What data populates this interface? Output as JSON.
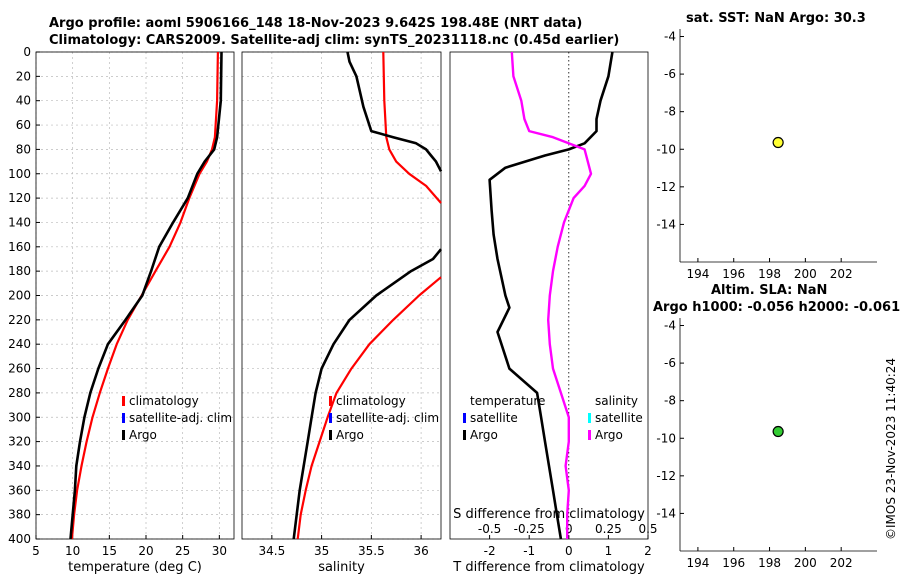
{
  "titles": {
    "line1": "Argo profile: aoml 5906166_148 18-Nov-2023 9.642S 198.48E (NRT data)",
    "line2": "Climatology: CARS2009. Satellite-adj clim: synTS_20231118.nc (0.45d earlier)",
    "sst": "sat. SST: NaN Argo: 30.3",
    "altim1": "Altim. SLA: NaN",
    "altim2": "Argo h1000: -0.056 h2000: -0.061"
  },
  "footer": {
    "timestamp": "©IMOS 23-Nov-2023 11:40:24"
  },
  "colors": {
    "climatology": "#ff0000",
    "satellite": "#0000ff",
    "satellite_s": "#00ffff",
    "argo": "#000000",
    "argo_s": "#ff00ff",
    "sst_dot": "#ffff33",
    "altim_dot": "#33cc33"
  },
  "chart_data": [
    {
      "id": "temperature",
      "type": "line",
      "xlabel": "temperature (deg C)",
      "xlim": [
        5,
        32
      ],
      "ylim": [
        0,
        400
      ],
      "xticks": [
        5,
        10,
        15,
        20,
        25,
        30
      ],
      "yticks": [
        0,
        20,
        40,
        60,
        80,
        100,
        120,
        140,
        160,
        180,
        200,
        220,
        240,
        260,
        280,
        300,
        320,
        340,
        360,
        380,
        400
      ],
      "legend": {
        "position": "lower-right",
        "entries": [
          "climatology",
          "satellite-adj. clim",
          "Argo"
        ]
      },
      "series": [
        {
          "name": "climatology",
          "depth": [
            0,
            40,
            70,
            80,
            90,
            100,
            120,
            140,
            160,
            180,
            200,
            220,
            240,
            260,
            280,
            300,
            320,
            340,
            360,
            380,
            400
          ],
          "value": [
            29.8,
            29.7,
            29.4,
            29.0,
            28.3,
            27.3,
            25.9,
            24.7,
            23.2,
            21.3,
            19.4,
            17.5,
            16.0,
            14.8,
            13.7,
            12.7,
            11.9,
            11.2,
            10.6,
            10.2,
            9.9
          ]
        },
        {
          "name": "Argo",
          "depth": [
            0,
            40,
            70,
            80,
            90,
            100,
            120,
            140,
            160,
            180,
            200,
            220,
            240,
            260,
            280,
            300,
            320,
            340,
            360,
            380,
            400
          ],
          "value": [
            30.3,
            30.2,
            29.7,
            29.3,
            28.0,
            27.0,
            25.7,
            23.7,
            21.8,
            20.7,
            19.5,
            17.2,
            14.8,
            13.5,
            12.4,
            11.6,
            11.0,
            10.5,
            10.3,
            10.0,
            9.7
          ]
        }
      ]
    },
    {
      "id": "salinity",
      "type": "line",
      "xlabel": "salinity",
      "xlim": [
        34.2,
        36.2
      ],
      "ylim": [
        0,
        400
      ],
      "xticks": [
        34.5,
        35,
        35.5,
        36
      ],
      "legend": {
        "position": "lower-right",
        "entries": [
          "climatology",
          "satellite-adj. clim",
          "Argo"
        ]
      },
      "series": [
        {
          "name": "climatology",
          "depth": [
            0,
            40,
            70,
            80,
            90,
            100,
            110,
            124,
            null,
            185,
            200,
            220,
            240,
            260,
            280,
            300,
            320,
            340,
            360,
            380,
            400
          ],
          "value": [
            35.62,
            35.63,
            35.65,
            35.68,
            35.75,
            35.88,
            36.05,
            36.2,
            null,
            36.2,
            35.98,
            35.72,
            35.48,
            35.3,
            35.15,
            35.06,
            34.98,
            34.9,
            34.84,
            34.79,
            34.76
          ]
        },
        {
          "name": "Argo",
          "depth": [
            0,
            8,
            20,
            45,
            65,
            70,
            75,
            80,
            85,
            90,
            98,
            null,
            162,
            170,
            180,
            200,
            220,
            240,
            260,
            280,
            300,
            320,
            340,
            360,
            380,
            400
          ],
          "value": [
            35.26,
            35.28,
            35.35,
            35.42,
            35.5,
            35.72,
            35.95,
            36.05,
            36.1,
            36.15,
            36.2,
            null,
            36.2,
            36.12,
            35.9,
            35.55,
            35.28,
            35.12,
            35.0,
            34.94,
            34.9,
            34.86,
            34.82,
            34.78,
            34.75,
            34.72
          ]
        }
      ]
    },
    {
      "id": "difference",
      "type": "line",
      "xlabel": "T difference from climatology",
      "x2label": "S difference from climatology",
      "xlim": [
        -3,
        2
      ],
      "x2lim": [
        -0.75,
        0.5
      ],
      "xticks": [
        -2,
        -1,
        0,
        1,
        2
      ],
      "x2ticks": [
        -0.5,
        -0.25,
        0,
        0.25,
        0.5
      ],
      "x2tick_labels": [
        "-0.5",
        "-0.25",
        "0",
        "0.25",
        "0.5"
      ],
      "legend": {
        "temperature": {
          "title": "temperature",
          "entries": [
            "satellite",
            "Argo"
          ]
        },
        "salinity": {
          "title": "salinity",
          "entries": [
            "satellite",
            "Argo"
          ]
        }
      },
      "series": [
        {
          "name": "T diff (Argo)",
          "axis": "T",
          "depth": [
            0,
            20,
            40,
            55,
            65,
            75,
            80,
            85,
            95,
            105,
            130,
            150,
            170,
            200,
            210,
            230,
            260,
            280,
            300,
            320,
            340,
            360,
            380,
            400
          ],
          "value": [
            1.1,
            1.0,
            0.8,
            0.7,
            0.7,
            0.4,
            0.0,
            -0.6,
            -1.6,
            -2.0,
            -1.95,
            -1.9,
            -1.8,
            -1.6,
            -1.5,
            -1.8,
            -1.5,
            -0.8,
            -0.7,
            -0.6,
            -0.5,
            -0.4,
            -0.3,
            -0.2
          ]
        },
        {
          "name": "S diff (Argo)",
          "axis": "S",
          "depth": [
            0,
            20,
            40,
            55,
            65,
            70,
            80,
            90,
            100,
            110,
            120,
            140,
            160,
            180,
            200,
            220,
            240,
            260,
            280,
            300,
            320,
            340,
            360,
            380,
            400
          ],
          "value": [
            -0.36,
            -0.35,
            -0.3,
            -0.28,
            -0.25,
            -0.1,
            0.1,
            0.12,
            0.14,
            0.1,
            0.03,
            -0.03,
            -0.07,
            -0.1,
            -0.12,
            -0.13,
            -0.12,
            -0.1,
            -0.05,
            0.0,
            0.0,
            -0.02,
            0.0,
            -0.01,
            -0.01
          ]
        }
      ]
    },
    {
      "id": "sst-map",
      "type": "scatter",
      "xlim": [
        193,
        204
      ],
      "ylim": [
        -16,
        -3.6
      ],
      "xticks": [
        194,
        196,
        198,
        200,
        202
      ],
      "yticks": [
        -4,
        -6,
        -8,
        -10,
        -12,
        -14
      ],
      "points": [
        {
          "x": 198.48,
          "y": -9.642
        }
      ]
    },
    {
      "id": "altim-map",
      "type": "scatter",
      "xlim": [
        193,
        204
      ],
      "ylim": [
        -16,
        -3.6
      ],
      "xticks": [
        194,
        196,
        198,
        200,
        202
      ],
      "yticks": [
        -4,
        -6,
        -8,
        -10,
        -12,
        -14
      ],
      "points": [
        {
          "x": 198.48,
          "y": -9.642
        }
      ]
    }
  ]
}
